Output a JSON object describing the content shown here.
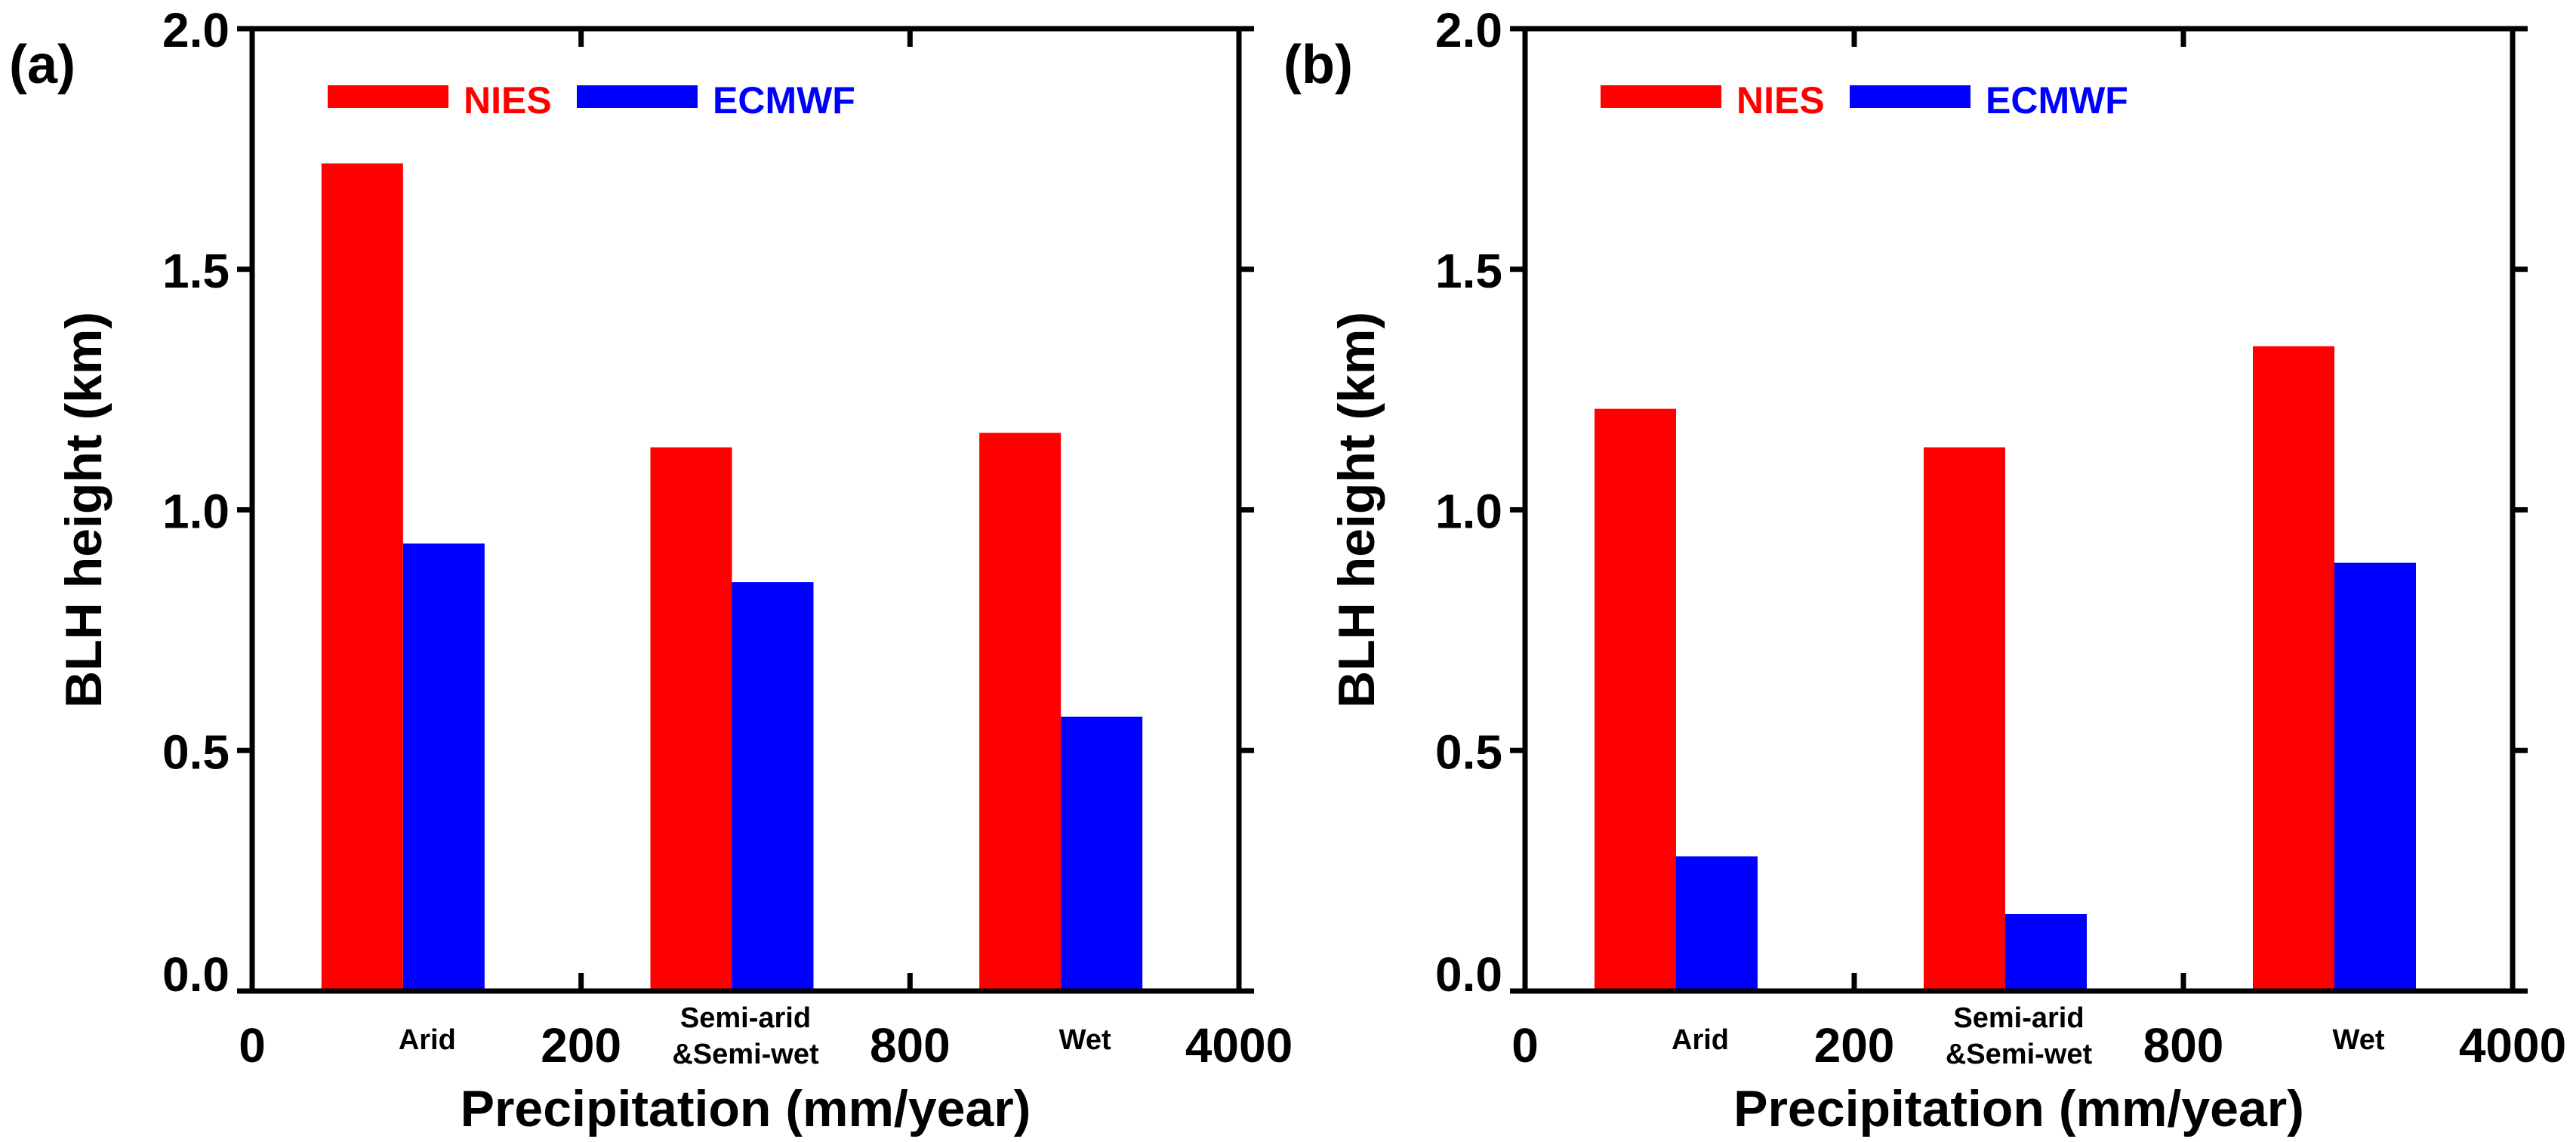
{
  "colors": {
    "nies": "#ff0000",
    "ecmwf": "#0000ff",
    "axis": "#000000"
  },
  "chart_data": [
    {
      "type": "bar",
      "panel_label": "(a)",
      "xlabel": "Precipitation (mm/year)",
      "ylabel": "BLH height (km)",
      "ylim": [
        0,
        2.0
      ],
      "yticks": [
        "0.0",
        "0.5",
        "1.0",
        "1.5",
        "2.0"
      ],
      "boundary_labels": [
        "0",
        "200",
        "800",
        "4000"
      ],
      "categories": [
        [
          "Arid"
        ],
        [
          "Semi-arid",
          "&Semi-wet"
        ],
        [
          "Wet"
        ]
      ],
      "legend_position": "top-left",
      "series": [
        {
          "name": "NIES",
          "color": "#ff0000",
          "values": [
            1.72,
            1.13,
            1.16
          ]
        },
        {
          "name": "ECMWF",
          "color": "#0000ff",
          "values": [
            0.93,
            0.85,
            0.57
          ]
        }
      ]
    },
    {
      "type": "bar",
      "panel_label": "(b)",
      "xlabel": "Precipitation (mm/year)",
      "ylabel": "BLH height (km)",
      "ylim": [
        0,
        2.0
      ],
      "yticks": [
        "0.0",
        "0.5",
        "1.0",
        "1.5",
        "2.0"
      ],
      "boundary_labels": [
        "0",
        "200",
        "800",
        "4000"
      ],
      "categories": [
        [
          "Arid"
        ],
        [
          "Semi-arid",
          "&Semi-wet"
        ],
        [
          "Wet"
        ]
      ],
      "legend_position": "top-left",
      "series": [
        {
          "name": "NIES",
          "color": "#ff0000",
          "values": [
            1.21,
            1.13,
            1.34
          ]
        },
        {
          "name": "ECMWF",
          "color": "#0000ff",
          "values": [
            0.28,
            0.16,
            0.89
          ]
        }
      ]
    }
  ]
}
